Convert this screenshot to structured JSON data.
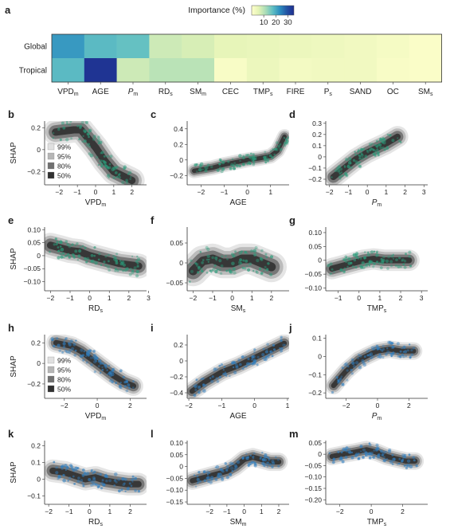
{
  "colors": {
    "heatmap_scale": [
      "#ffffcc",
      "#e3f3b6",
      "#a9dcb8",
      "#5fbec3",
      "#2c8ec0",
      "#2353a4",
      "#1e2d8f"
    ],
    "tropical_points": "#2a9d7b",
    "global_points": "#2f7fc1",
    "contour_levels": [
      "#e0e0e0",
      "#b6b6b6",
      "#707070",
      "#303030"
    ]
  },
  "chart_data": [
    {
      "panel": "a",
      "type": "heatmap",
      "legend_title": "Importance (%)",
      "legend_ticks": [
        10,
        20,
        30
      ],
      "colorbar_range": [
        0,
        35
      ],
      "rows": [
        "Global",
        "Tropical"
      ],
      "columns": [
        {
          "main": "VPD",
          "sub": "m"
        },
        {
          "main": "AGE",
          "sub": ""
        },
        {
          "main": "P",
          "sub": "m",
          "italic": true
        },
        {
          "main": "RD",
          "sub": "s"
        },
        {
          "main": "SM",
          "sub": "m"
        },
        {
          "main": "CEC",
          "sub": ""
        },
        {
          "main": "TMP",
          "sub": "s"
        },
        {
          "main": "FIRE",
          "sub": ""
        },
        {
          "main": "P",
          "sub": "s"
        },
        {
          "main": "SAND",
          "sub": ""
        },
        {
          "main": "OC",
          "sub": ""
        },
        {
          "main": "SM",
          "sub": "s"
        }
      ],
      "values": [
        [
          22,
          18,
          17,
          8,
          7,
          5,
          4.5,
          4,
          3.5,
          3,
          2,
          1
        ],
        [
          18,
          34,
          8,
          10,
          10,
          1.5,
          4,
          2.5,
          3,
          3,
          1.5,
          1
        ]
      ]
    },
    {
      "type": "contour-density-scatter",
      "ylabel": "SHAP",
      "legend_levels": [
        "99%",
        "95%",
        "80%",
        "50%"
      ],
      "panels": [
        {
          "id": "b",
          "xlabel": {
            "main": "VPD",
            "sub": "m"
          },
          "xlim": [
            -2.8,
            2.8
          ],
          "ylim": [
            -0.32,
            0.26
          ],
          "xticks": [
            -2,
            -1,
            0,
            1,
            2
          ],
          "yticks": [
            -0.2,
            0,
            0.2
          ],
          "yfmt": 1,
          "group": "tropical",
          "path": [
            [
              -2.2,
              0.16
            ],
            [
              -1.2,
              0.18
            ],
            [
              -0.8,
              0.18
            ],
            [
              -0.4,
              0.1
            ],
            [
              0.0,
              0.02
            ],
            [
              0.5,
              -0.1
            ],
            [
              1.0,
              -0.2
            ],
            [
              1.5,
              -0.24
            ],
            [
              2.0,
              -0.28
            ]
          ],
          "spread": [
            0.18,
            0.06
          ]
        },
        {
          "id": "c",
          "xlabel": {
            "main": "AGE",
            "sub": ""
          },
          "xlim": [
            -2.6,
            1.8
          ],
          "ylim": [
            -0.32,
            0.5
          ],
          "xticks": [
            -2,
            -1,
            0,
            1
          ],
          "yticks": [
            -0.2,
            0,
            0.2,
            0.4
          ],
          "yfmt": 1,
          "group": "tropical",
          "path": [
            [
              -2.3,
              -0.14
            ],
            [
              -1.5,
              -0.1
            ],
            [
              -1.0,
              -0.06
            ],
            [
              -0.5,
              -0.03
            ],
            [
              0.0,
              0.0
            ],
            [
              0.5,
              0.02
            ],
            [
              1.0,
              0.05
            ],
            [
              1.3,
              0.12
            ],
            [
              1.6,
              0.3
            ]
          ],
          "spread": [
            0.16,
            0.05
          ]
        },
        {
          "id": "d",
          "xlabel": {
            "main": "P",
            "sub": "m",
            "italic": true
          },
          "xlim": [
            -2.2,
            3.2
          ],
          "ylim": [
            -0.25,
            0.32
          ],
          "xticks": [
            -2,
            -1,
            0,
            1,
            2,
            3
          ],
          "yticks": [
            -0.2,
            -0.1,
            0,
            0.1,
            0.2,
            0.3
          ],
          "yfmt": 1,
          "group": "tropical",
          "path": [
            [
              -1.8,
              -0.18
            ],
            [
              -1.2,
              -0.1
            ],
            [
              -0.6,
              -0.02
            ],
            [
              0.0,
              0.04
            ],
            [
              0.5,
              0.08
            ],
            [
              1.0,
              0.12
            ],
            [
              1.6,
              0.18
            ]
          ],
          "spread": [
            0.18,
            0.05
          ]
        },
        {
          "id": "e",
          "xlabel": {
            "main": "RD",
            "sub": "s"
          },
          "xlim": [
            -2.3,
            2.9
          ],
          "ylim": [
            -0.135,
            0.11
          ],
          "xticks": [
            -2,
            -1,
            0,
            1,
            2,
            3
          ],
          "yticks": [
            -0.1,
            -0.05,
            0,
            0.05,
            0.1
          ],
          "yfmt": 2,
          "group": "tropical",
          "path": [
            [
              -2.0,
              0.04
            ],
            [
              -1.5,
              0.03
            ],
            [
              -1.0,
              0.02
            ],
            [
              -0.5,
              0.015
            ],
            [
              0.0,
              0.0
            ],
            [
              0.5,
              -0.01
            ],
            [
              1.0,
              -0.02
            ],
            [
              1.5,
              -0.03
            ],
            [
              2.0,
              -0.035
            ],
            [
              2.5,
              -0.04
            ]
          ],
          "spread": [
            0.18,
            0.025
          ]
        },
        {
          "id": "f",
          "xlabel": {
            "main": "SM",
            "sub": "s"
          },
          "xlim": [
            -2.3,
            2.9
          ],
          "ylim": [
            -0.07,
            0.09
          ],
          "xticks": [
            -2,
            -1,
            0,
            1,
            2
          ],
          "yticks": [
            -0.05,
            0,
            0.05
          ],
          "yfmt": 2,
          "group": "tropical",
          "path": [
            [
              -2.0,
              -0.02
            ],
            [
              -1.5,
              0.005
            ],
            [
              -1.0,
              0.01
            ],
            [
              -0.5,
              0.0
            ],
            [
              0.0,
              0.0
            ],
            [
              0.5,
              0.01
            ],
            [
              1.0,
              0.01
            ],
            [
              1.5,
              0.0
            ],
            [
              2.0,
              -0.01
            ]
          ],
          "spread": [
            0.2,
            0.02
          ]
        },
        {
          "id": "g",
          "xlabel": {
            "main": "TMP",
            "sub": "s"
          },
          "xlim": [
            -1.6,
            3.3
          ],
          "ylim": [
            -0.11,
            0.12
          ],
          "xticks": [
            -1,
            0,
            1,
            2,
            3
          ],
          "yticks": [
            -0.1,
            -0.05,
            0,
            0.05,
            0.1
          ],
          "yfmt": 2,
          "group": "tropical",
          "path": [
            [
              -1.3,
              -0.03
            ],
            [
              -0.8,
              -0.02
            ],
            [
              -0.3,
              -0.01
            ],
            [
              0.2,
              0.0
            ],
            [
              0.7,
              0.005
            ],
            [
              1.2,
              0.0
            ],
            [
              1.8,
              0.0
            ],
            [
              2.4,
              0.0
            ]
          ],
          "spread": [
            0.18,
            0.02
          ]
        },
        {
          "id": "h",
          "xlabel": {
            "main": "VPD",
            "sub": "m"
          },
          "xlim": [
            -3.2,
            3.0
          ],
          "ylim": [
            -0.34,
            0.28
          ],
          "xticks": [
            -2,
            0,
            2
          ],
          "yticks": [
            -0.2,
            0,
            0.2
          ],
          "yfmt": 1,
          "group": "global",
          "path": [
            [
              -2.5,
              0.2
            ],
            [
              -1.6,
              0.17
            ],
            [
              -1.0,
              0.12
            ],
            [
              -0.5,
              0.06
            ],
            [
              0.0,
              0.0
            ],
            [
              0.5,
              -0.06
            ],
            [
              1.0,
              -0.12
            ],
            [
              1.6,
              -0.18
            ],
            [
              2.2,
              -0.22
            ]
          ],
          "spread": [
            0.25,
            0.05
          ]
        },
        {
          "id": "i",
          "xlabel": {
            "main": "AGE",
            "sub": ""
          },
          "xlim": [
            -2.05,
            1.05
          ],
          "ylim": [
            -0.47,
            0.33
          ],
          "xticks": [
            -2,
            -1,
            0,
            1
          ],
          "yticks": [
            -0.4,
            -0.2,
            0,
            0.2
          ],
          "yfmt": 1,
          "group": "global",
          "path": [
            [
              -1.9,
              -0.38
            ],
            [
              -1.5,
              -0.26
            ],
            [
              -1.0,
              -0.14
            ],
            [
              -0.5,
              -0.06
            ],
            [
              0.0,
              0.04
            ],
            [
              0.5,
              0.14
            ],
            [
              0.9,
              0.22
            ]
          ],
          "spread": [
            0.12,
            0.06
          ]
        },
        {
          "id": "j",
          "xlabel": {
            "main": "P",
            "sub": "m",
            "italic": true
          },
          "xlim": [
            -3.3,
            3.2
          ],
          "ylim": [
            -0.23,
            0.12
          ],
          "xticks": [
            -2,
            0,
            2
          ],
          "yticks": [
            -0.2,
            -0.1,
            0,
            0.1
          ],
          "yfmt": 1,
          "group": "global",
          "path": [
            [
              -2.8,
              -0.16
            ],
            [
              -2.0,
              -0.08
            ],
            [
              -1.2,
              -0.02
            ],
            [
              -0.5,
              0.01
            ],
            [
              0.0,
              0.03
            ],
            [
              0.8,
              0.04
            ],
            [
              1.5,
              0.03
            ],
            [
              2.3,
              0.03
            ]
          ],
          "spread": [
            0.25,
            0.025
          ]
        },
        {
          "id": "k",
          "xlabel": {
            "main": "RD",
            "sub": "s"
          },
          "xlim": [
            -2.2,
            2.8
          ],
          "ylim": [
            -0.15,
            0.23
          ],
          "xticks": [
            -2,
            -1,
            0,
            1,
            2
          ],
          "yticks": [
            -0.1,
            0,
            0.1,
            0.2
          ],
          "yfmt": 1,
          "group": "global",
          "path": [
            [
              -1.8,
              0.05
            ],
            [
              -1.2,
              0.04
            ],
            [
              -0.7,
              0.02
            ],
            [
              -0.2,
              0.0
            ],
            [
              0.3,
              0.01
            ],
            [
              0.8,
              -0.01
            ],
            [
              1.3,
              -0.02
            ],
            [
              1.9,
              -0.03
            ],
            [
              2.4,
              -0.03
            ]
          ],
          "spread": [
            0.18,
            0.035
          ]
        },
        {
          "id": "l",
          "xlabel": {
            "main": "SM",
            "sub": "m"
          },
          "xlim": [
            -3.3,
            2.6
          ],
          "ylim": [
            -0.16,
            0.11
          ],
          "xticks": [
            -2,
            -1,
            0,
            1,
            2
          ],
          "yticks": [
            -0.15,
            -0.1,
            -0.05,
            0,
            0.05,
            0.1
          ],
          "yfmt": 2,
          "group": "global",
          "path": [
            [
              -3.0,
              -0.06
            ],
            [
              -2.5,
              -0.05
            ],
            [
              -2.0,
              -0.04
            ],
            [
              -1.5,
              -0.03
            ],
            [
              -1.0,
              -0.02
            ],
            [
              -0.5,
              0.0
            ],
            [
              0.0,
              0.03
            ],
            [
              0.5,
              0.04
            ],
            [
              1.0,
              0.03
            ],
            [
              1.5,
              0.02
            ],
            [
              2.0,
              0.02
            ]
          ],
          "spread": [
            0.22,
            0.02
          ]
        },
        {
          "id": "m",
          "xlabel": {
            "main": "TMP",
            "sub": "s"
          },
          "xlim": [
            -2.9,
            3.6
          ],
          "ylim": [
            -0.22,
            0.06
          ],
          "xticks": [
            -2,
            0,
            2
          ],
          "yticks": [
            -0.2,
            -0.15,
            -0.1,
            -0.05,
            0,
            0.05
          ],
          "yfmt": 2,
          "group": "global",
          "path": [
            [
              -2.5,
              -0.01
            ],
            [
              -1.8,
              0.0
            ],
            [
              -1.0,
              0.01
            ],
            [
              -0.3,
              0.02
            ],
            [
              0.3,
              0.01
            ],
            [
              1.0,
              -0.01
            ],
            [
              1.6,
              -0.02
            ],
            [
              2.2,
              -0.03
            ],
            [
              2.8,
              -0.03
            ]
          ],
          "spread": [
            0.25,
            0.02
          ]
        }
      ]
    }
  ]
}
